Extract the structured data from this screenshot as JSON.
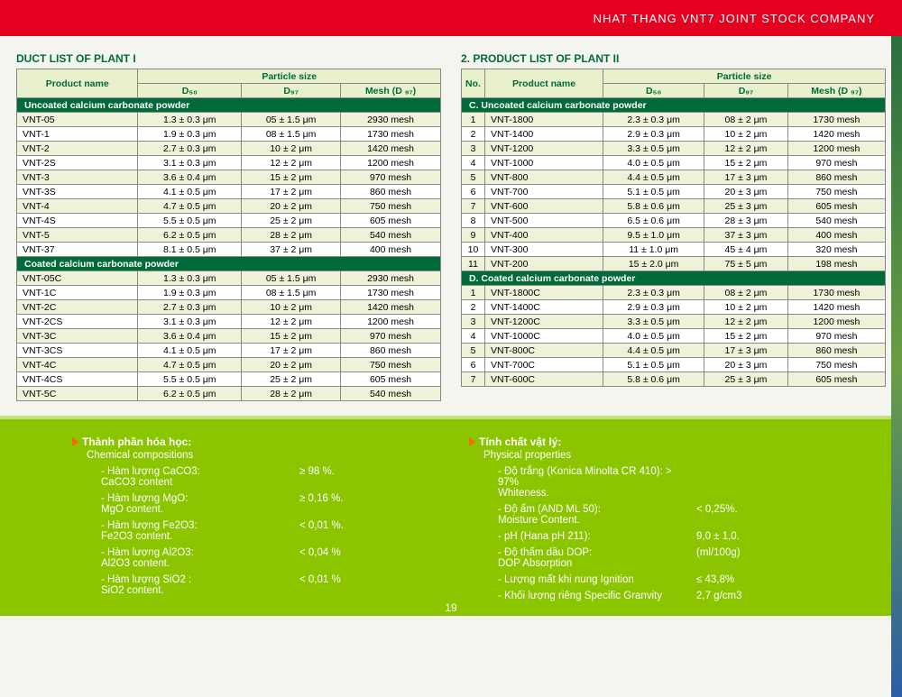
{
  "header": {
    "company": "NHAT THANG VNT7 JOINT STOCK COMPANY"
  },
  "left": {
    "title": "DUCT LIST OF PLANT I",
    "cols": {
      "name": "Product name",
      "particle": "Particle size",
      "d50": "D₅₀",
      "d97": "D₉₇",
      "mesh": "Mesh (D ₉₇)"
    },
    "sec1": "Uncoated calcium carbonate powder",
    "rows1": [
      {
        "n": "VNT-05",
        "d50": "1.3 ± 0.3 μm",
        "d97": "05 ± 1.5 μm",
        "m": "2930 mesh"
      },
      {
        "n": "VNT-1",
        "d50": "1.9 ± 0.3 μm",
        "d97": "08 ± 1.5 μm",
        "m": "1730 mesh"
      },
      {
        "n": "VNT-2",
        "d50": "2.7 ± 0.3 μm",
        "d97": "10 ± 2 μm",
        "m": "1420 mesh"
      },
      {
        "n": "VNT-2S",
        "d50": "3.1 ± 0.3 μm",
        "d97": "12 ± 2 μm",
        "m": "1200 mesh"
      },
      {
        "n": "VNT-3",
        "d50": "3.6 ± 0.4 μm",
        "d97": "15 ± 2 μm",
        "m": "970 mesh"
      },
      {
        "n": "VNT-3S",
        "d50": "4.1 ± 0.5 μm",
        "d97": "17 ± 2 μm",
        "m": "860 mesh"
      },
      {
        "n": "VNT-4",
        "d50": "4.7 ± 0.5 μm",
        "d97": "20 ± 2 μm",
        "m": "750 mesh"
      },
      {
        "n": "VNT-4S",
        "d50": "5.5 ± 0.5 μm",
        "d97": "25 ± 2 μm",
        "m": "605 mesh"
      },
      {
        "n": "VNT-5",
        "d50": "6.2 ± 0.5 μm",
        "d97": "28 ± 2 μm",
        "m": "540 mesh"
      },
      {
        "n": "VNT-37",
        "d50": "8.1 ± 0.5 μm",
        "d97": "37 ± 2 μm",
        "m": "400 mesh"
      }
    ],
    "sec2": "Coated calcium carbonate powder",
    "rows2": [
      {
        "n": "VNT-05C",
        "d50": "1.3 ± 0.3 μm",
        "d97": "05 ± 1.5 μm",
        "m": "2930 mesh"
      },
      {
        "n": "VNT-1C",
        "d50": "1.9 ± 0.3 μm",
        "d97": "08 ± 1.5 μm",
        "m": "1730 mesh"
      },
      {
        "n": "VNT-2C",
        "d50": "2.7 ± 0.3 μm",
        "d97": "10 ± 2 μm",
        "m": "1420 mesh"
      },
      {
        "n": "VNT-2CS",
        "d50": "3.1 ± 0.3 μm",
        "d97": "12 ± 2 μm",
        "m": "1200 mesh"
      },
      {
        "n": "VNT-3C",
        "d50": "3.6 ± 0.4 μm",
        "d97": "15 ± 2 μm",
        "m": "970 mesh"
      },
      {
        "n": "VNT-3CS",
        "d50": "4.1 ± 0.5 μm",
        "d97": "17 ± 2 μm",
        "m": "860 mesh"
      },
      {
        "n": "VNT-4C",
        "d50": "4.7 ± 0.5 μm",
        "d97": "20 ± 2 μm",
        "m": "750 mesh"
      },
      {
        "n": "VNT-4CS",
        "d50": "5.5 ± 0.5 μm",
        "d97": "25 ± 2 μm",
        "m": "605 mesh"
      },
      {
        "n": "VNT-5C",
        "d50": "6.2 ± 0.5 μm",
        "d97": "28 ± 2 μm",
        "m": "540 mesh"
      }
    ]
  },
  "right": {
    "title": "2. PRODUCT LIST OF PLANT II",
    "cols": {
      "no": "No.",
      "name": "Product name",
      "particle": "Particle size",
      "d50": "D₅₀",
      "d97": "D₉₇",
      "mesh": "Mesh (D ₉₇)"
    },
    "sec1": "C. Uncoated calcium carbonate powder",
    "rows1": [
      {
        "i": "1",
        "n": "VNT-1800",
        "d50": "2.3 ± 0.3 μm",
        "d97": "08 ± 2 μm",
        "m": "1730 mesh"
      },
      {
        "i": "2",
        "n": "VNT-1400",
        "d50": "2.9 ± 0.3 μm",
        "d97": "10 ± 2 μm",
        "m": "1420 mesh"
      },
      {
        "i": "3",
        "n": "VNT-1200",
        "d50": "3.3 ± 0.5 μm",
        "d97": "12 ± 2 μm",
        "m": "1200 mesh"
      },
      {
        "i": "4",
        "n": "VNT-1000",
        "d50": "4.0 ± 0.5 μm",
        "d97": "15 ± 2 μm",
        "m": "970 mesh"
      },
      {
        "i": "5",
        "n": "VNT-800",
        "d50": "4.4 ± 0.5 μm",
        "d97": "17 ± 3 μm",
        "m": "860 mesh"
      },
      {
        "i": "6",
        "n": "VNT-700",
        "d50": "5.1 ± 0.5 μm",
        "d97": "20 ± 3 μm",
        "m": "750 mesh"
      },
      {
        "i": "7",
        "n": "VNT-600",
        "d50": "5.8 ± 0.6 μm",
        "d97": "25 ± 3 μm",
        "m": "605 mesh"
      },
      {
        "i": "8",
        "n": "VNT-500",
        "d50": "6.5 ± 0.6 μm",
        "d97": "28 ± 3 μm",
        "m": "540 mesh"
      },
      {
        "i": "9",
        "n": "VNT-400",
        "d50": "9.5 ± 1.0 μm",
        "d97": "37 ± 3 μm",
        "m": "400 mesh"
      },
      {
        "i": "10",
        "n": "VNT-300",
        "d50": "11 ± 1.0 μm",
        "d97": "45 ± 4 μm",
        "m": "320 mesh"
      },
      {
        "i": "11",
        "n": "VNT-200",
        "d50": "15 ± 2.0 μm",
        "d97": "75 ± 5 μm",
        "m": "198 mesh"
      }
    ],
    "sec2": "D. Coated calcium carbonate powder",
    "rows2": [
      {
        "i": "1",
        "n": "VNT-1800C",
        "d50": "2.3 ± 0.3 μm",
        "d97": "08 ± 2 μm",
        "m": "1730 mesh"
      },
      {
        "i": "2",
        "n": "VNT-1400C",
        "d50": "2.9 ± 0.3 μm",
        "d97": "10 ± 2 μm",
        "m": "1420 mesh"
      },
      {
        "i": "3",
        "n": "VNT-1200C",
        "d50": "3.3 ± 0.5 μm",
        "d97": "12 ± 2 μm",
        "m": "1200 mesh"
      },
      {
        "i": "4",
        "n": "VNT-1000C",
        "d50": "4.0 ± 0.5 μm",
        "d97": "15 ± 2 μm",
        "m": "970 mesh"
      },
      {
        "i": "5",
        "n": "VNT-800C",
        "d50": "4.4 ± 0.5 μm",
        "d97": "17 ± 3 μm",
        "m": "860 mesh"
      },
      {
        "i": "6",
        "n": "VNT-700C",
        "d50": "5.1 ± 0.5 μm",
        "d97": "20 ± 3 μm",
        "m": "750 mesh"
      },
      {
        "i": "7",
        "n": "VNT-600C",
        "d50": "5.8 ± 0.6 μm",
        "d97": "25 ± 3 μm",
        "m": "605 mesh"
      }
    ]
  },
  "chem": {
    "title": "Thành phần hóa học:",
    "sub": "Chemical compositions",
    "items": [
      {
        "l": "- Hàm lượng CaCO3:\nCaCO3 content",
        "v": "≥ 98 %."
      },
      {
        "l": "- Hàm lượng MgO:\nMgO content.",
        "v": "≥ 0,16 %."
      },
      {
        "l": "- Hàm lượng Fe2O3:\nFe2O3 content.",
        "v": "< 0,01 %."
      },
      {
        "l": "- Hàm lượng Al2O3:\nAl2O3 content.",
        "v": "< 0,04 %"
      },
      {
        "l": "- Hàm lượng SiO2 :\nSiO2 content.",
        "v": "< 0,01 %"
      }
    ]
  },
  "phys": {
    "title": "Tính chất vật lý:",
    "sub": "Physical properties",
    "items": [
      {
        "l": "- Độ trắng (Konica Minolta CR 410): > 97%\n       Whiteness.",
        "v": ""
      },
      {
        "l": "- Độ ẩm (AND ML 50):\n       Moisture Content.",
        "v": "< 0,25%."
      },
      {
        "l": "- pH (Hana pH 211):",
        "v": "9,0 ± 1,0."
      },
      {
        "l": "- Độ thấm dầu DOP:\n       DOP Absorption",
        "v": "(ml/100g)"
      },
      {
        "l": "- Lượng mất khi nung Ignition",
        "v": "≤ 43,8%"
      },
      {
        "l": "- Khối lượng riêng Specific Granvity",
        "v": "2,7 g/cm3"
      }
    ]
  },
  "page_num": "19",
  "style": {
    "header_bg": "#e6001f",
    "green_dark": "#006a3a",
    "green_bright": "#8bc500",
    "row_alt_bg": "#eef2d8",
    "th_bg": "#e8f0cc",
    "arrow_color": "#ff6600"
  }
}
